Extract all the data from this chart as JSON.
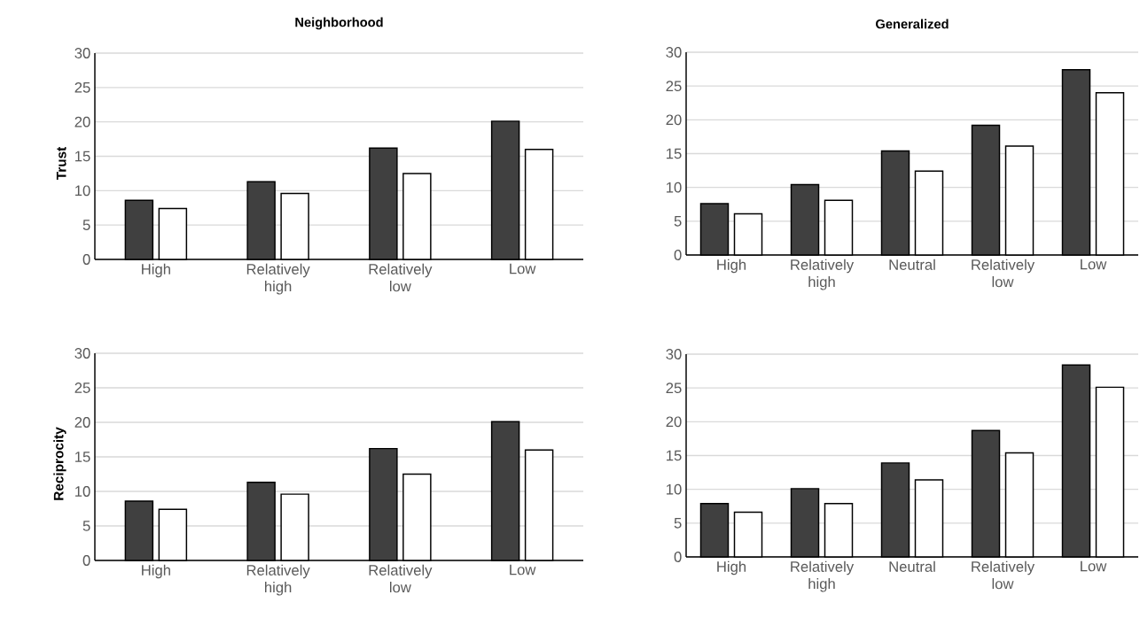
{
  "chart_data": [
    {
      "type": "bar",
      "title": "Neighborhood",
      "ylabel": "Trust",
      "categories": [
        "High",
        "Relatively high",
        "Relatively low",
        "Low"
      ],
      "series": [
        {
          "color": "#404040",
          "values": [
            8.6,
            11.3,
            16.2,
            20.1
          ]
        },
        {
          "color": "#ffffff",
          "values": [
            7.4,
            9.6,
            12.5,
            16.0
          ]
        }
      ],
      "ylim": [
        0,
        30
      ],
      "yticks": [
        0,
        5,
        10,
        15,
        20,
        25,
        30
      ],
      "grid": "y"
    },
    {
      "type": "bar",
      "title": "Generalized",
      "categories": [
        "High",
        "Relatively high",
        "Neutral",
        "Relatively low",
        "Low"
      ],
      "series": [
        {
          "color": "#404040",
          "values": [
            7.6,
            10.4,
            15.4,
            19.2,
            27.4
          ]
        },
        {
          "color": "#ffffff",
          "values": [
            6.1,
            8.1,
            12.4,
            16.1,
            24.0
          ]
        }
      ],
      "ylim": [
        0,
        30
      ],
      "yticks": [
        0,
        5,
        10,
        15,
        20,
        25,
        30
      ],
      "grid": "y"
    },
    {
      "type": "bar",
      "ylabel": "Reciprocity",
      "categories": [
        "High",
        "Relatively high",
        "Relatively low",
        "Low"
      ],
      "series": [
        {
          "color": "#404040",
          "values": [
            8.6,
            11.3,
            16.2,
            20.1
          ]
        },
        {
          "color": "#ffffff",
          "values": [
            7.4,
            9.6,
            12.5,
            16.0
          ]
        }
      ],
      "ylim": [
        0,
        30
      ],
      "yticks": [
        0,
        5,
        10,
        15,
        20,
        25,
        30
      ],
      "grid": "y"
    },
    {
      "type": "bar",
      "categories": [
        "High",
        "Relatively high",
        "Neutral",
        "Relatively low",
        "Low"
      ],
      "series": [
        {
          "color": "#404040",
          "values": [
            7.9,
            10.1,
            13.9,
            18.7,
            28.4
          ]
        },
        {
          "color": "#ffffff",
          "values": [
            6.6,
            7.9,
            11.4,
            15.4,
            25.1
          ]
        }
      ],
      "ylim": [
        0,
        30
      ],
      "yticks": [
        0,
        5,
        10,
        15,
        20,
        25,
        30
      ],
      "grid": "y"
    }
  ]
}
